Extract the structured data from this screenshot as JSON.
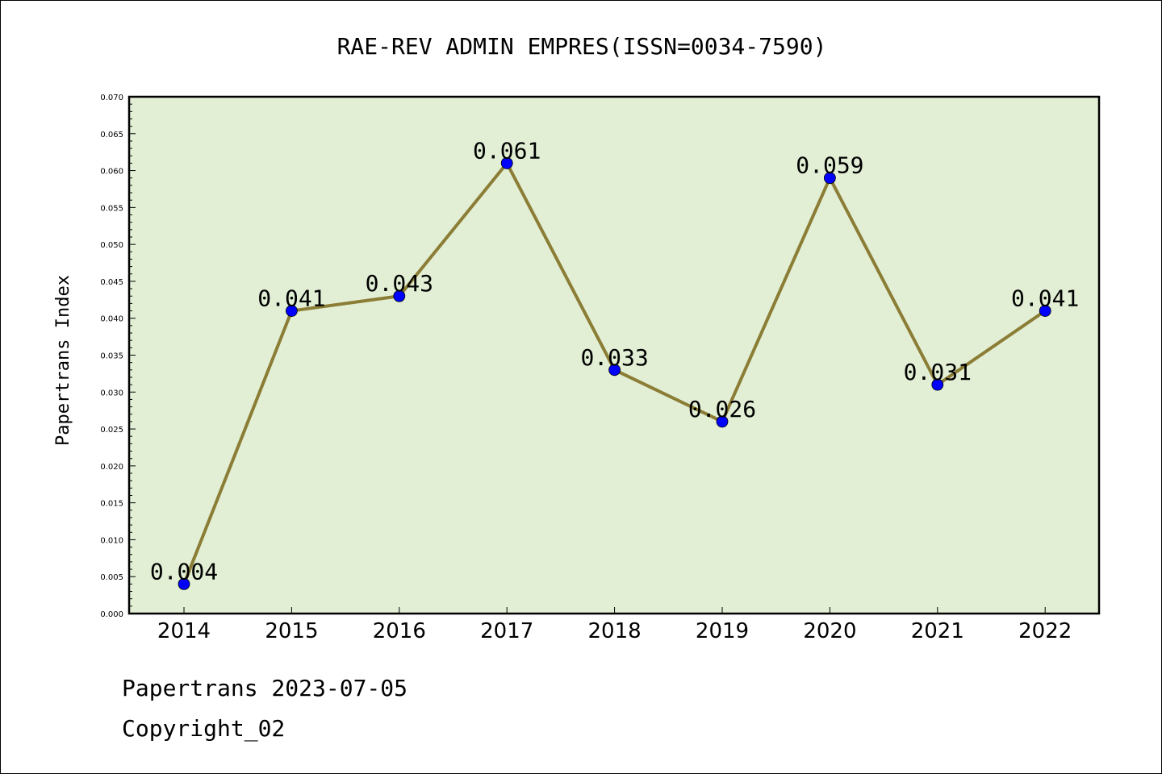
{
  "footer": {
    "line1": "Papertrans 2023-07-05",
    "line2": "Copyright_02"
  },
  "chart_data": {
    "type": "line",
    "title": "RAE-REV ADMIN EMPRES(ISSN=0034-7590)",
    "xlabel": "",
    "ylabel": "Papertrans Index",
    "categories": [
      "2014",
      "2015",
      "2016",
      "2017",
      "2018",
      "2019",
      "2020",
      "2021",
      "2022"
    ],
    "series": [
      {
        "values": [
          0.004,
          0.041,
          0.043,
          0.061,
          0.033,
          0.026,
          0.059,
          0.031,
          0.041
        ],
        "labels": [
          "0.004",
          "0.041",
          "0.043",
          "0.061",
          "0.033",
          "0.026",
          "0.059",
          "0.031",
          "0.041"
        ],
        "line_color": "#8b7d35",
        "marker_color": "#0000ff"
      }
    ],
    "ylim": [
      0,
      0.07
    ],
    "yticks": [
      "0.000",
      "0.005",
      "0.010",
      "0.015",
      "0.020",
      "0.025",
      "0.030",
      "0.035",
      "0.040",
      "0.045",
      "0.050",
      "0.055",
      "0.060",
      "0.065",
      "0.070"
    ],
    "grid": false,
    "legend": "none",
    "plot_background": "#e2efd5"
  }
}
